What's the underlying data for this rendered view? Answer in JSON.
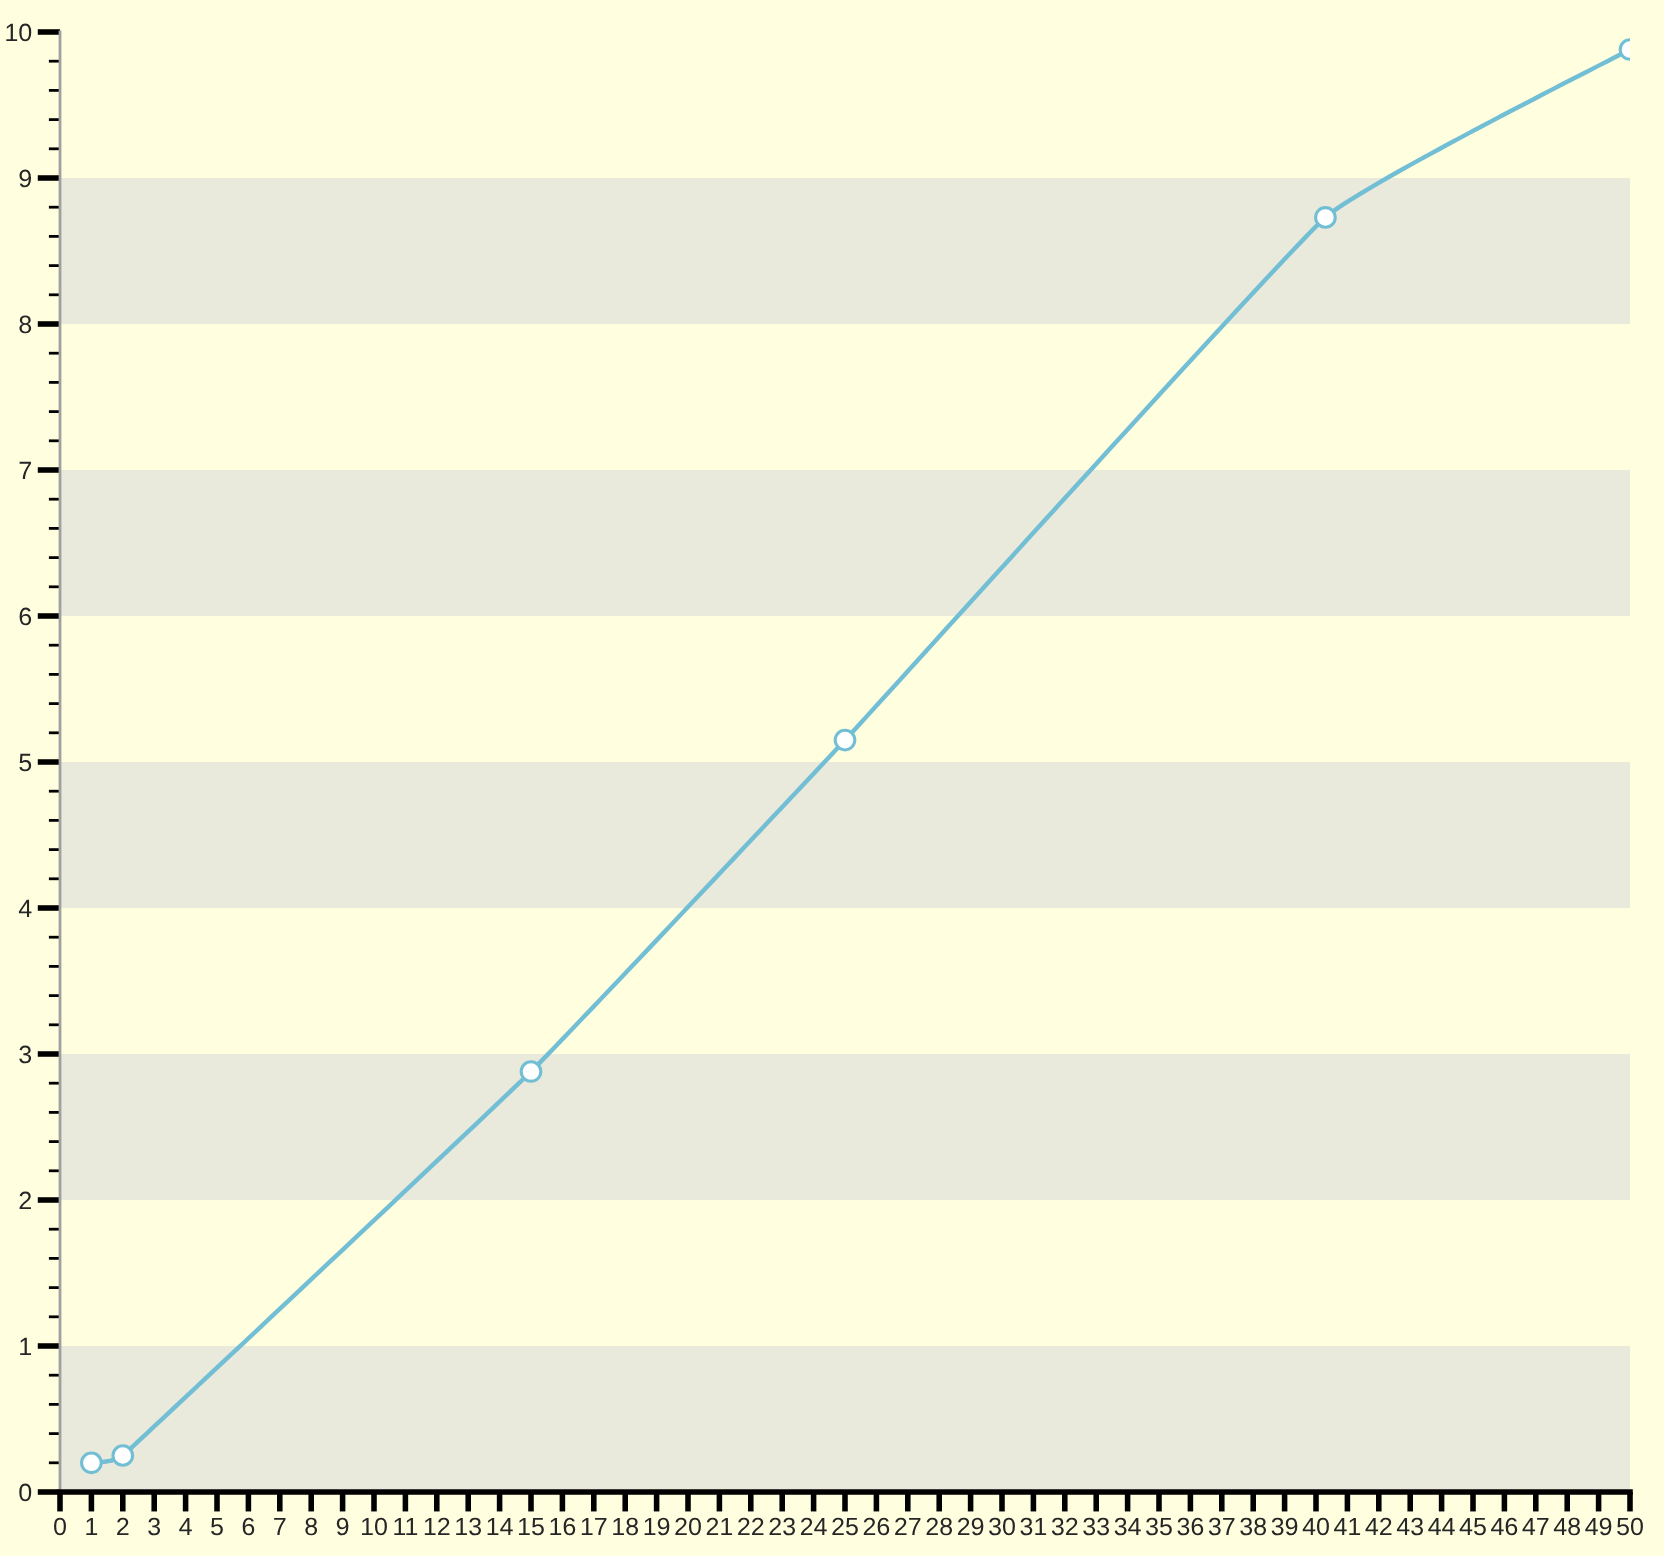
{
  "chart_data": {
    "type": "line",
    "x": [
      1,
      2,
      15,
      25,
      40.3,
      50
    ],
    "series": [
      {
        "color": "#72bfd5",
        "values": [
          0.2,
          0.25,
          2.88,
          5.15,
          8.73,
          9.88
        ]
      }
    ],
    "xlim": [
      0,
      50
    ],
    "ylim": [
      0,
      10
    ],
    "xticks": [
      0,
      1,
      2,
      3,
      4,
      5,
      6,
      7,
      8,
      9,
      10,
      11,
      12,
      13,
      14,
      15,
      16,
      17,
      18,
      19,
      20,
      21,
      22,
      23,
      24,
      25,
      26,
      27,
      28,
      29,
      30,
      31,
      32,
      33,
      34,
      35,
      36,
      37,
      38,
      39,
      40,
      41,
      42,
      43,
      44,
      45,
      46,
      47,
      48,
      49,
      50
    ],
    "yticks": [
      0,
      {
        "value": 0.2,
        "label": null
      },
      {
        "value": 0.4,
        "label": null
      },
      {
        "value": 0.6,
        "label": null
      },
      {
        "value": 0.8,
        "label": null
      },
      1,
      {
        "value": 1.2,
        "label": null
      },
      {
        "value": 1.4,
        "label": null
      },
      {
        "value": 1.6,
        "label": null
      },
      {
        "value": 1.8,
        "label": null
      },
      2,
      {
        "value": 2.2,
        "label": null
      },
      {
        "value": 2.4,
        "label": null
      },
      {
        "value": 2.6,
        "label": null
      },
      {
        "value": 2.8,
        "label": null
      },
      3,
      {
        "value": 3.2,
        "label": null
      },
      {
        "value": 3.4,
        "label": null
      },
      {
        "value": 3.6,
        "label": null
      },
      {
        "value": 3.8,
        "label": null
      },
      4,
      {
        "value": 4.2,
        "label": null
      },
      {
        "value": 4.4,
        "label": null
      },
      {
        "value": 4.6,
        "label": null
      },
      {
        "value": 4.8,
        "label": null
      },
      5,
      {
        "value": 5.2,
        "label": null
      },
      {
        "value": 5.4,
        "label": null
      },
      {
        "value": 5.6,
        "label": null
      },
      {
        "value": 5.8,
        "label": null
      },
      6,
      {
        "value": 6.2,
        "label": null
      },
      {
        "value": 6.4,
        "label": null
      },
      {
        "value": 6.6,
        "label": null
      },
      {
        "value": 6.8,
        "label": null
      },
      7,
      {
        "value": 7.2,
        "label": null
      },
      {
        "value": 7.4,
        "label": null
      },
      {
        "value": 7.6,
        "label": null
      },
      {
        "value": 7.8,
        "label": null
      },
      8,
      {
        "value": 8.2,
        "label": null
      },
      {
        "value": 8.4,
        "label": null
      },
      {
        "value": 8.6,
        "label": null
      },
      {
        "value": 8.8,
        "label": null
      },
      9,
      {
        "value": 9.2,
        "label": null
      },
      {
        "value": 9.4,
        "label": null
      },
      {
        "value": 9.6,
        "label": null
      },
      {
        "value": 9.8,
        "label": null
      },
      10
    ],
    "marker": "circle",
    "line_style": "solid",
    "bands": [
      {
        "axis": "y",
        "from": 0,
        "to": 1,
        "color": "#e9e9dc"
      },
      {
        "axis": "y",
        "from": 2,
        "to": 3,
        "color": "#e9e9dc"
      },
      {
        "axis": "y",
        "from": 4,
        "to": 5,
        "color": "#e9e9dc"
      },
      {
        "axis": "y",
        "from": 6,
        "to": 7,
        "color": "#e9e9dc"
      },
      {
        "axis": "y",
        "from": 8,
        "to": 9,
        "color": "#e9e9dc"
      }
    ]
  }
}
